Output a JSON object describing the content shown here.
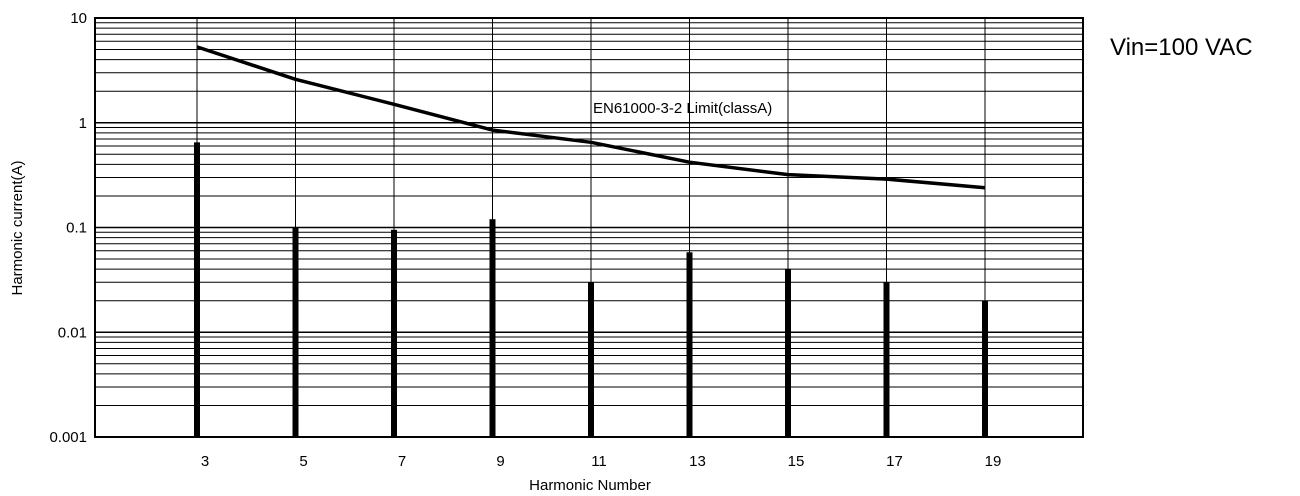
{
  "chart_data": {
    "type": "bar",
    "title": "",
    "condition": "Vin=100 VAC",
    "xlabel": "Harmonic  Number",
    "ylabel": "Harmonic  current(A)",
    "y_scale": "log",
    "ylim": [
      0.001,
      10
    ],
    "y_ticks": [
      "10",
      "1",
      "0.1",
      "0.01",
      "0.001"
    ],
    "categories": [
      "3",
      "5",
      "7",
      "9",
      "11",
      "13",
      "15",
      "17",
      "19"
    ],
    "grid": true,
    "series": [
      {
        "name": "",
        "kind": "bar",
        "x": [
          3,
          5,
          7,
          9,
          11,
          13,
          15,
          17,
          19
        ],
        "values": [
          0.65,
          0.1,
          0.095,
          0.12,
          0.03,
          0.058,
          0.04,
          0.03,
          0.02
        ]
      },
      {
        "name": "EN61000-3-2 Limit(classA)",
        "kind": "line",
        "x": [
          3,
          5,
          7,
          9,
          11,
          13,
          15,
          17,
          19
        ],
        "values": [
          5.3,
          2.6,
          1.5,
          0.85,
          0.65,
          0.42,
          0.32,
          0.29,
          0.24
        ]
      }
    ],
    "annotations": [
      "EN61000-3-2 Limit(classA)"
    ],
    "colors": {
      "bars": "#000000",
      "line": "#000000",
      "grid": "#000000"
    }
  }
}
